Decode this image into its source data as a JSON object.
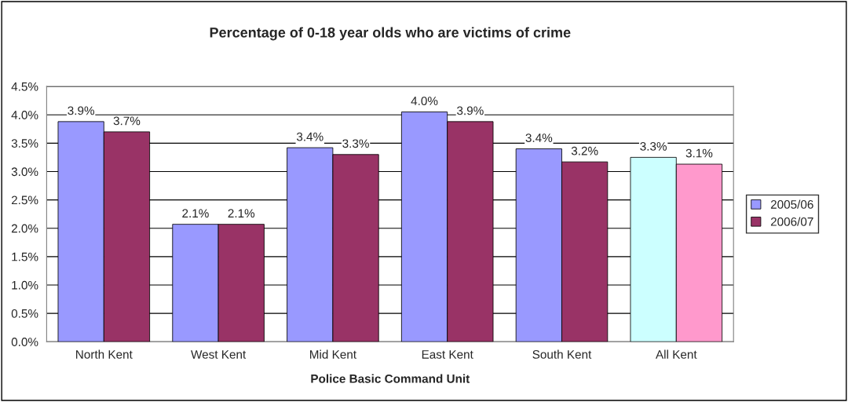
{
  "chart_data": {
    "type": "bar",
    "title": "Percentage of 0-18 year olds who are victims of crime",
    "xlabel": "Police Basic Command Unit",
    "categories": [
      "North Kent",
      "West Kent",
      "Mid Kent",
      "East Kent",
      "South Kent",
      "All Kent"
    ],
    "series": [
      {
        "name": "2005/06",
        "color": "#9999ff",
        "colors": [
          "#9999ff",
          "#9999ff",
          "#9999ff",
          "#9999ff",
          "#9999ff",
          "#ccffff"
        ],
        "values": [
          3.88,
          2.07,
          3.42,
          4.05,
          3.4,
          3.25
        ],
        "value_labels": [
          "3.9%",
          "2.1%",
          "3.4%",
          "4.0%",
          "3.4%",
          "3.3%"
        ]
      },
      {
        "name": "2006/07",
        "color": "#993366",
        "colors": [
          "#993366",
          "#993366",
          "#993366",
          "#993366",
          "#993366",
          "#ff99cc"
        ],
        "values": [
          3.7,
          2.07,
          3.3,
          3.88,
          3.17,
          3.13
        ],
        "value_labels": [
          "3.7%",
          "2.1%",
          "3.3%",
          "3.9%",
          "3.2%",
          "3.1%"
        ]
      }
    ],
    "ylim": [
      0,
      4.5
    ],
    "yticks": [
      {
        "value": 0,
        "label": "0.0%"
      },
      {
        "value": 0.5,
        "label": "0.5%"
      },
      {
        "value": 1,
        "label": "1.0%"
      },
      {
        "value": 1.5,
        "label": "1.5%"
      },
      {
        "value": 2,
        "label": "2.0%"
      },
      {
        "value": 2.5,
        "label": "2.5%"
      },
      {
        "value": 3,
        "label": "3.0%"
      },
      {
        "value": 3.5,
        "label": "3.5%"
      },
      {
        "value": 4,
        "label": "4.0%"
      },
      {
        "value": 4.5,
        "label": "4.5%"
      }
    ],
    "grid": "y",
    "legend": "right"
  }
}
